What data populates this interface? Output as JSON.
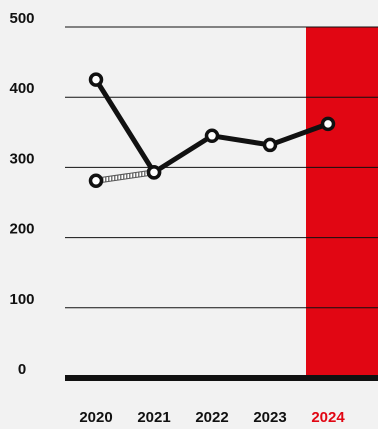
{
  "chart_data": {
    "type": "line",
    "title": "",
    "xlabel": "",
    "ylabel": "",
    "categories": [
      "2020",
      "2021",
      "2022",
      "2023",
      "2024"
    ],
    "ylim": [
      0,
      500
    ],
    "yticks": [
      0,
      100,
      200,
      300,
      400,
      500
    ],
    "highlight_category": "2024",
    "colors": {
      "line": "#111111",
      "highlight": "#e10613",
      "grid": "#111111",
      "background": "#f2f2f2"
    },
    "series": [
      {
        "style": "solid",
        "points": [
          {
            "x": "2020",
            "y": 425
          },
          {
            "x": "2021",
            "y": 293
          },
          {
            "x": "2022",
            "y": 345
          },
          {
            "x": "2023",
            "y": 332
          },
          {
            "x": "2024",
            "y": 362
          }
        ]
      },
      {
        "style": "hatched",
        "points": [
          {
            "x": "2020",
            "y": 281
          },
          {
            "x": "2021",
            "y": 293
          }
        ]
      }
    ]
  }
}
